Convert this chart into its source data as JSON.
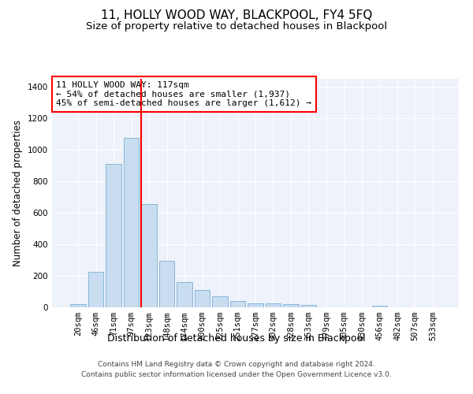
{
  "title": "11, HOLLY WOOD WAY, BLACKPOOL, FY4 5FQ",
  "subtitle": "Size of property relative to detached houses in Blackpool",
  "xlabel": "Distribution of detached houses by size in Blackpool",
  "ylabel": "Number of detached properties",
  "bar_labels": [
    "20sqm",
    "46sqm",
    "71sqm",
    "97sqm",
    "123sqm",
    "148sqm",
    "174sqm",
    "200sqm",
    "225sqm",
    "251sqm",
    "277sqm",
    "302sqm",
    "328sqm",
    "353sqm",
    "379sqm",
    "405sqm",
    "430sqm",
    "456sqm",
    "482sqm",
    "507sqm",
    "533sqm"
  ],
  "bar_values": [
    20,
    225,
    910,
    1075,
    655,
    295,
    158,
    108,
    70,
    38,
    27,
    27,
    20,
    15,
    0,
    0,
    0,
    12,
    0,
    0,
    0
  ],
  "bar_color": "#c9ddf0",
  "bar_edge_color": "#7aafd4",
  "vline_bar_index": 4,
  "vline_color": "red",
  "annotation_text": "11 HOLLY WOOD WAY: 117sqm\n← 54% of detached houses are smaller (1,937)\n45% of semi-detached houses are larger (1,612) →",
  "annotation_box_color": "white",
  "annotation_box_edge_color": "red",
  "ylim": [
    0,
    1450
  ],
  "yticks": [
    0,
    200,
    400,
    600,
    800,
    1000,
    1200,
    1400
  ],
  "footer_line1": "Contains HM Land Registry data © Crown copyright and database right 2024.",
  "footer_line2": "Contains public sector information licensed under the Open Government Licence v3.0.",
  "bg_color": "#eef2fa",
  "title_fontsize": 11,
  "subtitle_fontsize": 9.5,
  "xlabel_fontsize": 9,
  "ylabel_fontsize": 8.5,
  "tick_fontsize": 7.5,
  "footer_fontsize": 6.5,
  "annotation_fontsize": 8
}
